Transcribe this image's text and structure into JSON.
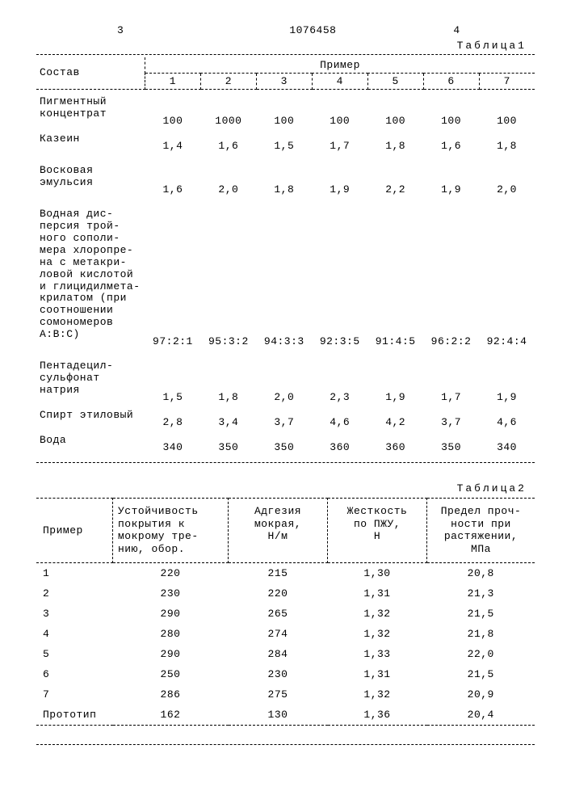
{
  "doc": {
    "col3": "3",
    "number": "1076458",
    "col4": "4",
    "table1_label": "Таблица1",
    "table2_label": "Таблица2"
  },
  "table1": {
    "composition_header": "Состав",
    "example_header": "Пример",
    "cols": [
      "1",
      "2",
      "3",
      "4",
      "5",
      "6",
      "7"
    ],
    "rows": [
      {
        "label": "Пигментный\nконцентрат",
        "vals": [
          "100",
          "1000",
          "100",
          "100",
          "100",
          "100",
          "100"
        ]
      },
      {
        "label": "Казеин",
        "vals": [
          "1,4",
          "1,6",
          "1,5",
          "1,7",
          "1,8",
          "1,6",
          "1,8"
        ]
      },
      {
        "label": "Восковая\nэмульсия",
        "vals": [
          "1,6",
          "2,0",
          "1,8",
          "1,9",
          "2,2",
          "1,9",
          "2,0"
        ]
      },
      {
        "label": "Водная дис-\nперсия трой-\nного сополи-\nмера хлоропре-\nна с метакри-\nловой кислотой\nи глицидилмета-\nкрилатом (при\nсоотношении\nсомономеров\nА:В:С)",
        "vals": [
          "97:2:1",
          "95:3:2",
          "94:3:3",
          "92:3:5",
          "91:4:5",
          "96:2:2",
          "92:4:4"
        ]
      },
      {
        "label": "Пентадецил-\nсульфонат\nнатрия",
        "vals": [
          "1,5",
          "1,8",
          "2,0",
          "2,3",
          "1,9",
          "1,7",
          "1,9"
        ]
      },
      {
        "label": "Спирт этиловый",
        "vals": [
          "2,8",
          "3,4",
          "3,7",
          "4,6",
          "4,2",
          "3,7",
          "4,6"
        ]
      },
      {
        "label": "Вода",
        "vals": [
          "340",
          "350",
          "350",
          "360",
          "360",
          "350",
          "340"
        ]
      }
    ]
  },
  "table2": {
    "headers": {
      "example": "Пример",
      "resistance": "Устойчивость\nпокрытия к\nмокрому  тре-\nнию, обор.",
      "adhesion": "Адгезия\nмокрая,\nН/м",
      "stiffness": "Жесткость\nпо ПЖУ,\nН",
      "strength": "Предел проч-\nности   при\nрастяжении,\nМПа"
    },
    "rows": [
      {
        "label": "1",
        "vals": [
          "220",
          "215",
          "1,30",
          "20,8"
        ]
      },
      {
        "label": "2",
        "vals": [
          "230",
          "220",
          "1,31",
          "21,3"
        ]
      },
      {
        "label": "3",
        "vals": [
          "290",
          "265",
          "1,32",
          "21,5"
        ]
      },
      {
        "label": "4",
        "vals": [
          "280",
          "274",
          "1,32",
          "21,8"
        ]
      },
      {
        "label": "5",
        "vals": [
          "290",
          "284",
          "1,33",
          "22,0"
        ]
      },
      {
        "label": "6",
        "vals": [
          "250",
          "230",
          "1,31",
          "21,5"
        ]
      },
      {
        "label": "7",
        "vals": [
          "286",
          "275",
          "1,32",
          "20,9"
        ]
      },
      {
        "label": "Прототип",
        "vals": [
          "162",
          "130",
          "1,36",
          "20,4"
        ]
      }
    ]
  }
}
